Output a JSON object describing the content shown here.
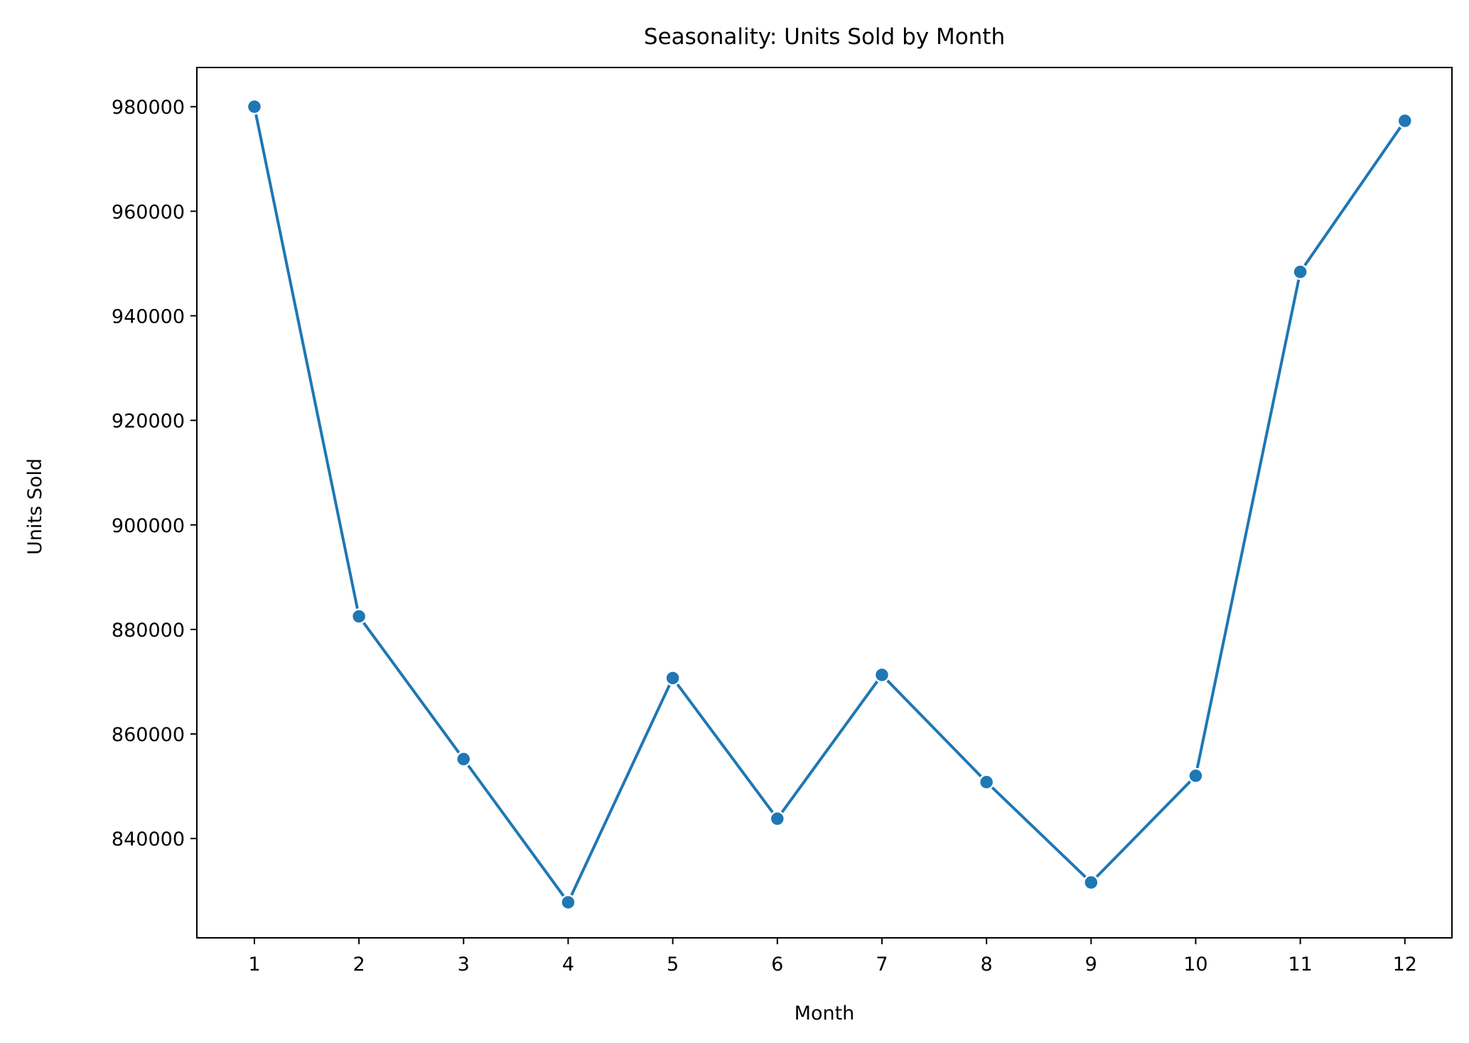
{
  "chart_data": {
    "type": "line",
    "title": "Seasonality: Units Sold by Month",
    "xlabel": "Month",
    "ylabel": "Units Sold",
    "x": [
      1,
      2,
      3,
      4,
      5,
      6,
      7,
      8,
      9,
      10,
      11,
      12
    ],
    "x_tick_labels": [
      "1",
      "2",
      "3",
      "4",
      "5",
      "6",
      "7",
      "8",
      "9",
      "10",
      "11",
      "12"
    ],
    "y_ticks": [
      840000,
      860000,
      880000,
      900000,
      920000,
      940000,
      960000,
      980000
    ],
    "y_tick_labels": [
      "840000",
      "860000",
      "880000",
      "900000",
      "920000",
      "940000",
      "960000",
      "980000"
    ],
    "xlim": [
      0.45,
      12.45
    ],
    "ylim": [
      821000,
      987500
    ],
    "grid": false,
    "series": [
      {
        "values": [
          980000,
          882500,
          855200,
          827800,
          870700,
          843800,
          871300,
          850800,
          831600,
          852000,
          948400,
          977300
        ]
      }
    ],
    "colors": {
      "series": "#1f77b4",
      "marker_edge": "#ffffff",
      "axes": "#000000",
      "background": "#ffffff"
    }
  }
}
